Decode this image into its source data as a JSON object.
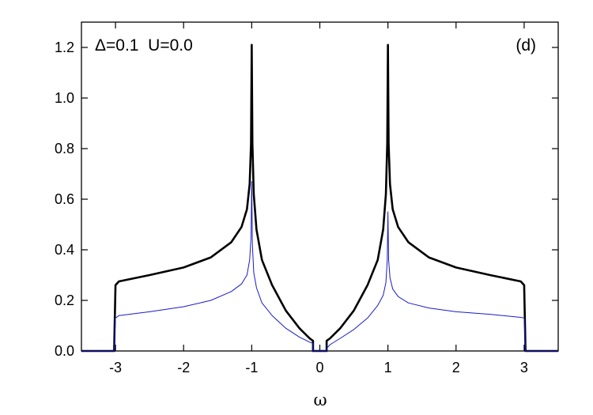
{
  "chart_data": {
    "type": "line",
    "title": "",
    "xlabel": "ω",
    "ylabel": "",
    "xlim": [
      -3.5,
      3.5
    ],
    "ylim": [
      0.0,
      1.3
    ],
    "x_ticks": [
      -3,
      -2,
      -1,
      0,
      1,
      2,
      3
    ],
    "x_tick_labels": [
      "-3",
      "-2",
      "-1",
      "0",
      "1",
      "2",
      "3"
    ],
    "y_ticks": [
      0.0,
      0.2,
      0.4,
      0.6,
      0.8,
      1.0,
      1.2
    ],
    "y_tick_labels": [
      "0.0",
      "0.2",
      "0.4",
      "0.6",
      "0.8",
      "1.0",
      "1.2"
    ],
    "grid": false,
    "legend": "none",
    "annotations": [
      {
        "text": "Δ=0.1  U=0.0",
        "position": "top-left"
      },
      {
        "text": "(d)",
        "position": "top-right"
      }
    ],
    "series": [
      {
        "color": "#000000",
        "x": [
          -3.5,
          -3.02,
          -3.0,
          -2.95,
          -2.5,
          -2.0,
          -1.6,
          -1.3,
          -1.15,
          -1.07,
          -1.03,
          -1.01,
          -1.0,
          -0.99,
          -0.97,
          -0.93,
          -0.85,
          -0.7,
          -0.5,
          -0.3,
          -0.15,
          -0.1,
          -0.1,
          -0.05,
          0.05,
          0.1,
          0.1,
          0.15,
          0.3,
          0.5,
          0.7,
          0.85,
          0.93,
          0.97,
          0.99,
          1.0,
          1.01,
          1.03,
          1.07,
          1.15,
          1.3,
          1.6,
          2.0,
          2.5,
          2.95,
          3.0,
          3.02,
          3.5
        ],
        "y": [
          0.0,
          0.0,
          0.26,
          0.275,
          0.3,
          0.33,
          0.37,
          0.43,
          0.49,
          0.56,
          0.66,
          0.82,
          1.21,
          0.82,
          0.62,
          0.48,
          0.36,
          0.26,
          0.16,
          0.09,
          0.05,
          0.04,
          0.0,
          0.0,
          0.0,
          0.0,
          0.04,
          0.05,
          0.09,
          0.16,
          0.26,
          0.36,
          0.48,
          0.62,
          0.82,
          1.21,
          0.82,
          0.66,
          0.56,
          0.49,
          0.43,
          0.37,
          0.33,
          0.3,
          0.275,
          0.26,
          0.0,
          0.0
        ]
      },
      {
        "color": "#1a1acc",
        "x": [
          -3.5,
          -3.02,
          -3.0,
          -2.95,
          -2.5,
          -2.0,
          -1.6,
          -1.3,
          -1.15,
          -1.07,
          -1.03,
          -1.01,
          -1.0,
          -0.99,
          -0.97,
          -0.93,
          -0.85,
          -0.7,
          -0.5,
          -0.3,
          -0.15,
          -0.1,
          -0.1,
          -0.05,
          0.05,
          0.1,
          0.1,
          0.15,
          0.3,
          0.5,
          0.7,
          0.85,
          0.93,
          0.97,
          0.99,
          1.0,
          1.01,
          1.03,
          1.07,
          1.15,
          1.3,
          1.6,
          2.0,
          2.5,
          2.95,
          3.0,
          3.02,
          3.5
        ],
        "y": [
          0.0,
          0.0,
          0.13,
          0.14,
          0.155,
          0.175,
          0.2,
          0.235,
          0.265,
          0.3,
          0.36,
          0.45,
          0.67,
          0.42,
          0.31,
          0.25,
          0.19,
          0.14,
          0.09,
          0.055,
          0.035,
          0.03,
          0.0,
          0.0,
          0.0,
          0.0,
          0.01,
          0.025,
          0.05,
          0.085,
          0.13,
          0.18,
          0.22,
          0.27,
          0.36,
          0.55,
          0.36,
          0.29,
          0.245,
          0.215,
          0.19,
          0.17,
          0.155,
          0.145,
          0.133,
          0.13,
          0.0,
          0.0
        ]
      }
    ]
  }
}
